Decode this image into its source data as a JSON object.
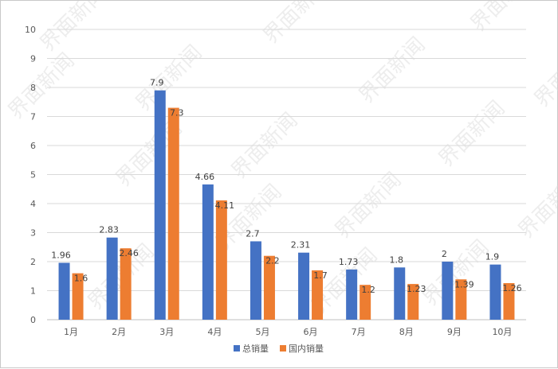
{
  "chart_data": {
    "type": "bar",
    "categories": [
      "1月",
      "2月",
      "3月",
      "4月",
      "5月",
      "6月",
      "7月",
      "8月",
      "9月",
      "10月"
    ],
    "series": [
      {
        "name": "总销量",
        "color": "#4472C4",
        "values": [
          1.96,
          2.83,
          7.9,
          4.66,
          2.7,
          2.31,
          1.73,
          1.8,
          2,
          1.9
        ],
        "labels": [
          "1.96",
          "2.83",
          "7.9",
          "4.66",
          "2.7",
          "2.31",
          "1.73",
          "1.8",
          "2",
          "1.9"
        ]
      },
      {
        "name": "国内销量",
        "color": "#ED7D31",
        "values": [
          1.6,
          2.46,
          7.3,
          4.11,
          2.2,
          1.7,
          1.2,
          1.23,
          1.39,
          1.26
        ],
        "labels": [
          "1.6",
          "2.46",
          "7.3",
          "4.11",
          "2.2",
          "1.7",
          "1.2",
          "1.23",
          "1.39",
          "1.26"
        ]
      }
    ],
    "yticks": [
      "0",
      "1",
      "2",
      "3",
      "4",
      "5",
      "6",
      "7",
      "8",
      "9",
      "10"
    ],
    "ylim": [
      0,
      10
    ],
    "grid": true,
    "legend_position": "bottom",
    "title": "",
    "xlabel": "",
    "ylabel": ""
  },
  "watermark": "界面新闻"
}
